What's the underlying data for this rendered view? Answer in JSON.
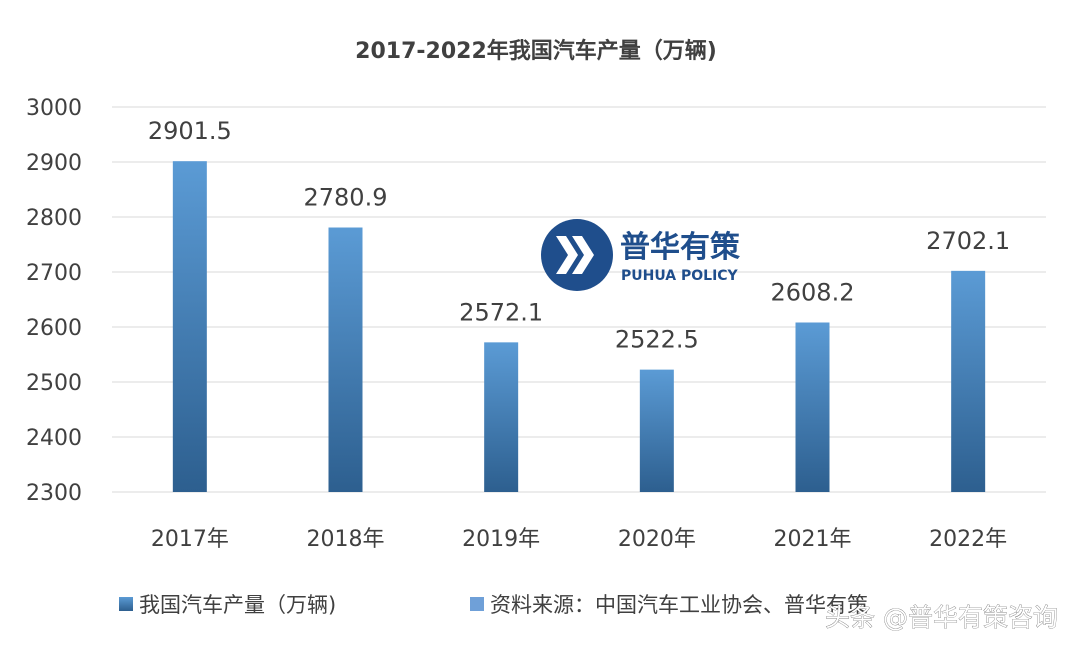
{
  "chart_data": {
    "type": "bar",
    "title": "2017-2022年我国汽车产量（万辆)",
    "categories": [
      "2017年",
      "2018年",
      "2019年",
      "2020年",
      "2021年",
      "2022年"
    ],
    "series": [
      {
        "name": "我国汽车产量（万辆)",
        "values": [
          2901.5,
          2780.9,
          2572.1,
          2522.5,
          2608.2,
          2702.1
        ]
      }
    ],
    "data_labels": [
      "2901.5",
      "2780.9",
      "2572.1",
      "2522.5",
      "2608.2",
      "2702.1"
    ],
    "y_ticks": [
      "3000",
      "2900",
      "2800",
      "2700",
      "2600",
      "2500",
      "2400",
      "2300"
    ],
    "ylim": [
      2300,
      3000
    ],
    "grid": true,
    "legend_position": "bottom-left",
    "legend": [
      "我国汽车产量（万辆)",
      "资料来源：中国汽车工业协会、普华有策"
    ],
    "colors": {
      "bar_top": "#5b9bd5",
      "bar_bottom": "#2d5f8f",
      "legend_box": "#2e6da4"
    }
  },
  "logo": {
    "cn": "普华有策",
    "en": "PUHUA POLICY"
  },
  "watermark": "头条 @普华有策咨询"
}
